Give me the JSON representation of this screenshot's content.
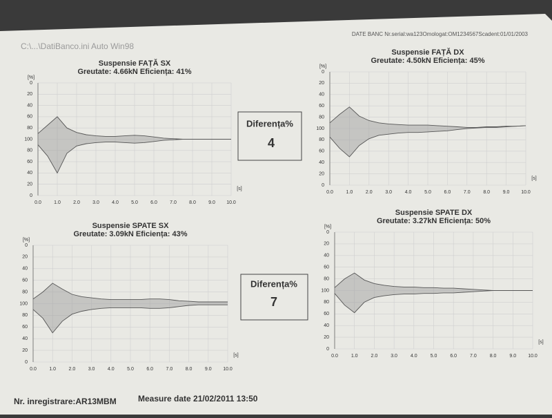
{
  "header": {
    "left": "C:\\...\\DatiBanco.ini Auto Win98",
    "right": "DATE BANC Nr.serial:wa123Omologat:OM1234567Scadent:01/01/2003"
  },
  "footer": {
    "registration": "Nr. inregistrare:AR13MBM",
    "measure": "Measure date 21/02/2011  13:50"
  },
  "differences": [
    {
      "label": "Diferența%",
      "value": 4
    },
    {
      "label": "Diferența%",
      "value": 7
    }
  ],
  "chart_data": [
    {
      "type": "line",
      "title": "Suspensie FAȚĂ SX",
      "subtitle": "Greutate: 4.66kN   Eficiența: 41%",
      "y_label": "[%]",
      "x_label": "[s]",
      "grid": true,
      "x": [
        0,
        0.5,
        1,
        1.5,
        2,
        2.5,
        3,
        3.5,
        4,
        4.5,
        5,
        5.5,
        6,
        6.5,
        7,
        7.5,
        8,
        8.5,
        9,
        9.5,
        10
      ],
      "series": [
        {
          "color": "#555555",
          "values": [
            90,
            75,
            60,
            80,
            88,
            92,
            94,
            95,
            95,
            94,
            93,
            94,
            96,
            98,
            99,
            100,
            100,
            100,
            100,
            100,
            100
          ]
        },
        {
          "color": "#555555",
          "values": [
            110,
            130,
            160,
            125,
            112,
            108,
            106,
            105,
            105,
            106,
            107,
            106,
            104,
            102,
            101,
            100,
            100,
            100,
            100,
            100,
            100
          ]
        }
      ],
      "xlim": [
        0,
        10
      ],
      "ylim": [
        200,
        0
      ],
      "xticks": [
        {
          "value": 0,
          "label": "0.0"
        },
        {
          "value": 1,
          "label": "1.0"
        },
        {
          "value": 2,
          "label": "2.0"
        },
        {
          "value": 3,
          "label": "3.0"
        },
        {
          "value": 4,
          "label": "4.0"
        },
        {
          "value": 5,
          "label": "5.0"
        },
        {
          "value": 6,
          "label": "6.0"
        },
        {
          "value": 7,
          "label": "7.0"
        },
        {
          "value": 8,
          "label": "8.0"
        },
        {
          "value": 9,
          "label": "9.0"
        },
        {
          "value": 10,
          "label": "10.0"
        }
      ],
      "yticks": [
        0,
        20,
        40,
        60,
        80,
        100,
        {
          "value": 120,
          "label": "80"
        },
        {
          "value": 140,
          "label": "60"
        },
        {
          "value": 160,
          "label": "40"
        },
        {
          "value": 180,
          "label": "20"
        },
        {
          "value": 200,
          "label": "0"
        }
      ]
    },
    {
      "type": "line",
      "title": "Suspensie FAȚĂ DX",
      "subtitle": "Greutate: 4.50kN   Eficiența: 45%",
      "y_label": "[%]",
      "x_label": "[s]",
      "grid": true,
      "x": [
        0,
        0.5,
        1,
        1.5,
        2,
        2.5,
        3,
        3.5,
        4,
        4.5,
        5,
        5.5,
        6,
        6.5,
        7,
        7.5,
        8,
        8.5,
        9,
        9.5,
        10
      ],
      "series": [
        {
          "color": "#555555",
          "values": [
            90,
            75,
            62,
            78,
            86,
            90,
            92,
            93,
            94,
            94,
            94,
            95,
            96,
            97,
            98,
            98,
            97,
            97,
            96,
            96,
            95
          ]
        },
        {
          "color": "#555555",
          "values": [
            115,
            135,
            150,
            130,
            118,
            112,
            110,
            108,
            107,
            107,
            106,
            105,
            104,
            102,
            100,
            99,
            98,
            98,
            97,
            96,
            95
          ]
        }
      ],
      "xlim": [
        0,
        10
      ],
      "ylim": [
        200,
        0
      ],
      "xticks": [
        {
          "value": 0,
          "label": "0.0"
        },
        {
          "value": 1,
          "label": "1.0"
        },
        {
          "value": 2,
          "label": "2.0"
        },
        {
          "value": 3,
          "label": "3.0"
        },
        {
          "value": 4,
          "label": "4.0"
        },
        {
          "value": 5,
          "label": "5.0"
        },
        {
          "value": 6,
          "label": "6.0"
        },
        {
          "value": 7,
          "label": "7.0"
        },
        {
          "value": 8,
          "label": "8.0"
        },
        {
          "value": 9,
          "label": "9.0"
        },
        {
          "value": 10,
          "label": "10.0"
        }
      ],
      "yticks": [
        0,
        20,
        40,
        60,
        80,
        100,
        {
          "value": 120,
          "label": "80"
        },
        {
          "value": 140,
          "label": "60"
        },
        {
          "value": 160,
          "label": "40"
        },
        {
          "value": 180,
          "label": "20"
        },
        {
          "value": 200,
          "label": "0"
        }
      ]
    },
    {
      "type": "line",
      "title": "Suspensie SPATE SX",
      "subtitle": "Greutate: 3.09kN   Eficiența: 43%",
      "y_label": "[%]",
      "x_label": "[s]",
      "grid": true,
      "x": [
        0,
        0.5,
        1,
        1.5,
        2,
        2.5,
        3,
        3.5,
        4,
        4.5,
        5,
        5.5,
        6,
        6.5,
        7,
        7.5,
        8,
        8.5,
        9,
        9.5,
        10
      ],
      "series": [
        {
          "color": "#555555",
          "values": [
            92,
            80,
            65,
            75,
            84,
            88,
            90,
            92,
            93,
            93,
            93,
            93,
            92,
            92,
            93,
            95,
            96,
            97,
            97,
            97,
            97
          ]
        },
        {
          "color": "#555555",
          "values": [
            110,
            125,
            150,
            130,
            118,
            113,
            110,
            108,
            107,
            107,
            107,
            107,
            108,
            108,
            107,
            105,
            103,
            102,
            102,
            102,
            102
          ]
        }
      ],
      "xlim": [
        0,
        10
      ],
      "ylim": [
        200,
        0
      ],
      "xticks": [
        {
          "value": 0,
          "label": "0.0"
        },
        {
          "value": 1,
          "label": "1.0"
        },
        {
          "value": 2,
          "label": "2.0"
        },
        {
          "value": 3,
          "label": "3.0"
        },
        {
          "value": 4,
          "label": "4.0"
        },
        {
          "value": 5,
          "label": "5.0"
        },
        {
          "value": 6,
          "label": "6.0"
        },
        {
          "value": 7,
          "label": "7.0"
        },
        {
          "value": 8,
          "label": "8.0"
        },
        {
          "value": 9,
          "label": "9.0"
        },
        {
          "value": 10,
          "label": "10.0"
        }
      ],
      "yticks": [
        0,
        20,
        40,
        60,
        80,
        100,
        {
          "value": 120,
          "label": "80"
        },
        {
          "value": 140,
          "label": "60"
        },
        {
          "value": 160,
          "label": "40"
        },
        {
          "value": 180,
          "label": "20"
        },
        {
          "value": 200,
          "label": "0"
        }
      ]
    },
    {
      "type": "line",
      "title": "Suspensie SPATE DX",
      "subtitle": "Greutate: 3.27kN   Eficiența: 50%",
      "y_label": "[%]",
      "x_label": "[s]",
      "grid": true,
      "x": [
        0,
        0.5,
        1,
        1.5,
        2,
        2.5,
        3,
        3.5,
        4,
        4.5,
        5,
        5.5,
        6,
        6.5,
        7,
        7.5,
        8,
        8.5,
        9,
        9.5,
        10
      ],
      "series": [
        {
          "color": "#555555",
          "values": [
            95,
            80,
            70,
            82,
            88,
            91,
            93,
            94,
            94,
            95,
            95,
            96,
            96,
            97,
            98,
            99,
            100,
            100,
            100,
            100,
            100
          ]
        },
        {
          "color": "#555555",
          "values": [
            105,
            125,
            138,
            120,
            112,
            109,
            107,
            106,
            106,
            105,
            105,
            104,
            104,
            103,
            102,
            101,
            100,
            100,
            100,
            100,
            100
          ]
        }
      ],
      "xlim": [
        0,
        10
      ],
      "ylim": [
        200,
        0
      ],
      "xticks": [
        {
          "value": 0,
          "label": "0.0"
        },
        {
          "value": 1,
          "label": "1.0"
        },
        {
          "value": 2,
          "label": "2.0"
        },
        {
          "value": 3,
          "label": "3.0"
        },
        {
          "value": 4,
          "label": "4.0"
        },
        {
          "value": 5,
          "label": "5.0"
        },
        {
          "value": 6,
          "label": "6.0"
        },
        {
          "value": 7,
          "label": "7.0"
        },
        {
          "value": 8,
          "label": "8.0"
        },
        {
          "value": 9,
          "label": "9.0"
        },
        {
          "value": 10,
          "label": "10.0"
        }
      ],
      "yticks": [
        0,
        20,
        40,
        60,
        80,
        100,
        {
          "value": 120,
          "label": "80"
        },
        {
          "value": 140,
          "label": "60"
        },
        {
          "value": 160,
          "label": "40"
        },
        {
          "value": 180,
          "label": "20"
        },
        {
          "value": 200,
          "label": "0"
        }
      ]
    }
  ]
}
